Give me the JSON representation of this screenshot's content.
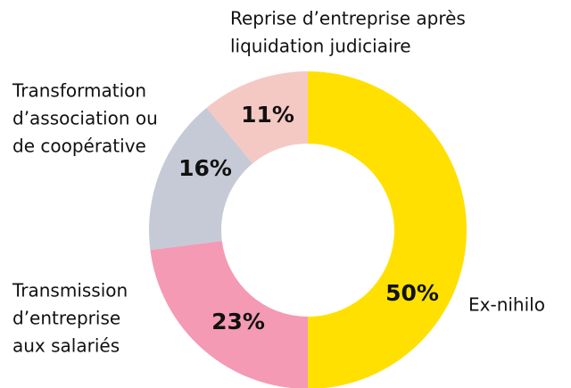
{
  "chart_data": {
    "type": "donut",
    "categories": [
      [
        "Ex-nihilo"
      ],
      [
        "Transmission",
        "d’entreprise",
        "aux salariés"
      ],
      [
        "Transformation",
        "d’association ou",
        "de coopérative"
      ],
      [
        "Reprise d’entreprise après",
        "liquidation judiciaire"
      ]
    ],
    "values": [
      50,
      23,
      16,
      11
    ],
    "value_labels": [
      "50%",
      "23%",
      "16%",
      "11%"
    ],
    "colors": [
      "#ffe000",
      "#f49ab5",
      "#c5cad6",
      "#f4c9c4"
    ]
  }
}
